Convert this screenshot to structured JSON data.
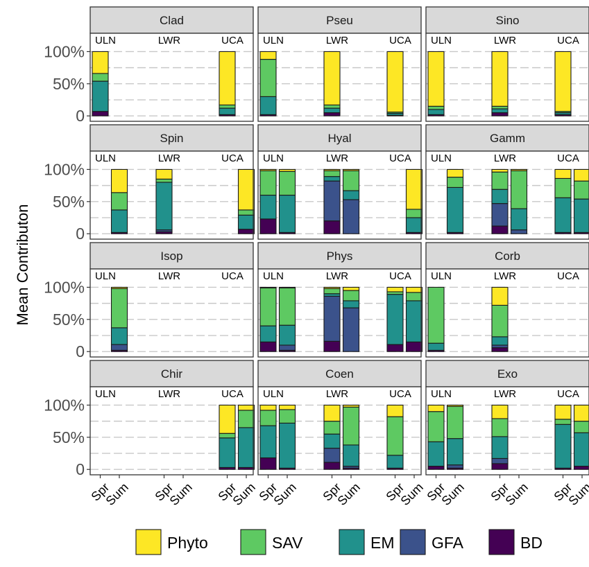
{
  "chart_data": {
    "type": "bar",
    "stacked": true,
    "faceted": true,
    "ylabel": "Mean Contributon",
    "xlabel": "",
    "ylim": [
      0,
      100
    ],
    "y_ticks": [
      "0",
      "50%",
      "100%"
    ],
    "gridlines": [
      0,
      25,
      50,
      75,
      100
    ],
    "grid": true,
    "legend_position": "bottom",
    "locations": [
      "ULN",
      "LWR",
      "UCA"
    ],
    "seasons": [
      "Spr",
      "Sum"
    ],
    "series": [
      {
        "name": "Phyto",
        "color": "#FDE725"
      },
      {
        "name": "SAV",
        "color": "#5EC962"
      },
      {
        "name": "EM",
        "color": "#21918C"
      },
      {
        "name": "GFA",
        "color": "#3B528B"
      },
      {
        "name": "BD",
        "color": "#440154"
      }
    ],
    "stack_order_bottom_to_top": [
      "BD",
      "GFA",
      "EM",
      "SAV",
      "Phyto"
    ],
    "panels": [
      {
        "title": "Clad",
        "bars": [
          {
            "loc": "ULN",
            "season": "Spr",
            "BD": 7,
            "GFA": 0,
            "EM": 47,
            "SAV": 12,
            "Phyto": 34
          },
          {
            "loc": "UCA",
            "season": "Spr",
            "BD": 2,
            "GFA": 0,
            "EM": 10,
            "SAV": 5,
            "Phyto": 83
          }
        ]
      },
      {
        "title": "Pseu",
        "bars": [
          {
            "loc": "ULN",
            "season": "Spr",
            "BD": 2,
            "GFA": 0,
            "EM": 28,
            "SAV": 58,
            "Phyto": 12
          },
          {
            "loc": "LWR",
            "season": "Spr",
            "BD": 5,
            "GFA": 0,
            "EM": 7,
            "SAV": 5,
            "Phyto": 83
          },
          {
            "loc": "UCA",
            "season": "Spr",
            "BD": 1,
            "GFA": 0,
            "EM": 3,
            "SAV": 2,
            "Phyto": 94
          }
        ]
      },
      {
        "title": "Sino",
        "bars": [
          {
            "loc": "ULN",
            "season": "Spr",
            "BD": 2,
            "GFA": 0,
            "EM": 8,
            "SAV": 5,
            "Phyto": 85
          },
          {
            "loc": "LWR",
            "season": "Spr",
            "BD": 5,
            "GFA": 0,
            "EM": 6,
            "SAV": 4,
            "Phyto": 85
          },
          {
            "loc": "UCA",
            "season": "Spr",
            "BD": 2,
            "GFA": 0,
            "EM": 3,
            "SAV": 2,
            "Phyto": 93
          }
        ]
      },
      {
        "title": "Spin",
        "bars": [
          {
            "loc": "ULN",
            "season": "Sum",
            "BD": 2,
            "GFA": 0,
            "EM": 35,
            "SAV": 27,
            "Phyto": 36
          },
          {
            "loc": "LWR",
            "season": "Spr",
            "BD": 3,
            "GFA": 3,
            "EM": 74,
            "SAV": 5,
            "Phyto": 15
          },
          {
            "loc": "UCA",
            "season": "Sum",
            "BD": 7,
            "GFA": 0,
            "EM": 22,
            "SAV": 8,
            "Phyto": 63
          }
        ]
      },
      {
        "title": "Hyal",
        "bars": [
          {
            "loc": "ULN",
            "season": "Spr",
            "BD": 23,
            "GFA": 0,
            "EM": 37,
            "SAV": 38,
            "Phyto": 2
          },
          {
            "loc": "ULN",
            "season": "Sum",
            "BD": 2,
            "GFA": 0,
            "EM": 58,
            "SAV": 37,
            "Phyto": 3
          },
          {
            "loc": "LWR",
            "season": "Spr",
            "BD": 20,
            "GFA": 62,
            "EM": 7,
            "SAV": 9,
            "Phyto": 2
          },
          {
            "loc": "LWR",
            "season": "Sum",
            "BD": 0,
            "GFA": 53,
            "EM": 14,
            "SAV": 31,
            "Phyto": 2
          },
          {
            "loc": "UCA",
            "season": "Sum",
            "BD": 2,
            "GFA": 0,
            "EM": 23,
            "SAV": 13,
            "Phyto": 62
          }
        ]
      },
      {
        "title": "Gamm",
        "bars": [
          {
            "loc": "ULN",
            "season": "Sum",
            "BD": 2,
            "GFA": 0,
            "EM": 70,
            "SAV": 16,
            "Phyto": 12
          },
          {
            "loc": "LWR",
            "season": "Spr",
            "BD": 12,
            "GFA": 35,
            "EM": 22,
            "SAV": 27,
            "Phyto": 4
          },
          {
            "loc": "LWR",
            "season": "Sum",
            "BD": 0,
            "GFA": 6,
            "EM": 33,
            "SAV": 59,
            "Phyto": 2
          },
          {
            "loc": "UCA",
            "season": "Spr",
            "BD": 2,
            "GFA": 0,
            "EM": 54,
            "SAV": 30,
            "Phyto": 14
          },
          {
            "loc": "UCA",
            "season": "Sum",
            "BD": 2,
            "GFA": 0,
            "EM": 52,
            "SAV": 28,
            "Phyto": 18
          }
        ]
      },
      {
        "title": "Isop",
        "bars": [
          {
            "loc": "ULN",
            "season": "Sum",
            "BD": 2,
            "GFA": 9,
            "EM": 26,
            "SAV": 61,
            "Phyto": 2
          }
        ]
      },
      {
        "title": "Phys",
        "bars": [
          {
            "loc": "ULN",
            "season": "Spr",
            "BD": 15,
            "GFA": 0,
            "EM": 25,
            "SAV": 59,
            "Phyto": 1
          },
          {
            "loc": "ULN",
            "season": "Sum",
            "BD": 2,
            "GFA": 8,
            "EM": 31,
            "SAV": 58,
            "Phyto": 1
          },
          {
            "loc": "LWR",
            "season": "Spr",
            "BD": 16,
            "GFA": 70,
            "EM": 4,
            "SAV": 8,
            "Phyto": 2
          },
          {
            "loc": "LWR",
            "season": "Sum",
            "BD": 0,
            "GFA": 68,
            "EM": 11,
            "SAV": 16,
            "Phyto": 5
          },
          {
            "loc": "UCA",
            "season": "Spr",
            "BD": 11,
            "GFA": 0,
            "EM": 78,
            "SAV": 4,
            "Phyto": 7
          },
          {
            "loc": "UCA",
            "season": "Sum",
            "BD": 15,
            "GFA": 0,
            "EM": 64,
            "SAV": 13,
            "Phyto": 8
          }
        ]
      },
      {
        "title": "Corb",
        "bars": [
          {
            "loc": "ULN",
            "season": "Spr",
            "BD": 2,
            "GFA": 0,
            "EM": 11,
            "SAV": 87,
            "Phyto": 0
          },
          {
            "loc": "LWR",
            "season": "Spr",
            "BD": 6,
            "GFA": 4,
            "EM": 13,
            "SAV": 49,
            "Phyto": 28
          }
        ]
      },
      {
        "title": "Chir",
        "bars": [
          {
            "loc": "UCA",
            "season": "Spr",
            "BD": 3,
            "GFA": 0,
            "EM": 46,
            "SAV": 7,
            "Phyto": 44
          },
          {
            "loc": "UCA",
            "season": "Sum",
            "BD": 3,
            "GFA": 0,
            "EM": 62,
            "SAV": 27,
            "Phyto": 8
          }
        ]
      },
      {
        "title": "Coen",
        "bars": [
          {
            "loc": "ULN",
            "season": "Spr",
            "BD": 18,
            "GFA": 0,
            "EM": 50,
            "SAV": 24,
            "Phyto": 8
          },
          {
            "loc": "ULN",
            "season": "Sum",
            "BD": 2,
            "GFA": 0,
            "EM": 70,
            "SAV": 21,
            "Phyto": 7
          },
          {
            "loc": "LWR",
            "season": "Spr",
            "BD": 11,
            "GFA": 22,
            "EM": 22,
            "SAV": 20,
            "Phyto": 25
          },
          {
            "loc": "LWR",
            "season": "Sum",
            "BD": 2,
            "GFA": 3,
            "EM": 33,
            "SAV": 59,
            "Phyto": 3
          },
          {
            "loc": "UCA",
            "season": "Spr",
            "BD": 2,
            "GFA": 0,
            "EM": 20,
            "SAV": 60,
            "Phyto": 18
          }
        ]
      },
      {
        "title": "Exo",
        "bars": [
          {
            "loc": "ULN",
            "season": "Spr",
            "BD": 5,
            "GFA": 0,
            "EM": 38,
            "SAV": 47,
            "Phyto": 10
          },
          {
            "loc": "ULN",
            "season": "Sum",
            "BD": 2,
            "GFA": 5,
            "EM": 41,
            "SAV": 50,
            "Phyto": 2
          },
          {
            "loc": "LWR",
            "season": "Spr",
            "BD": 9,
            "GFA": 8,
            "EM": 34,
            "SAV": 28,
            "Phyto": 21
          },
          {
            "loc": "UCA",
            "season": "Spr",
            "BD": 2,
            "GFA": 0,
            "EM": 68,
            "SAV": 8,
            "Phyto": 22
          },
          {
            "loc": "UCA",
            "season": "Sum",
            "BD": 5,
            "GFA": 0,
            "EM": 52,
            "SAV": 18,
            "Phyto": 25
          }
        ]
      }
    ]
  }
}
